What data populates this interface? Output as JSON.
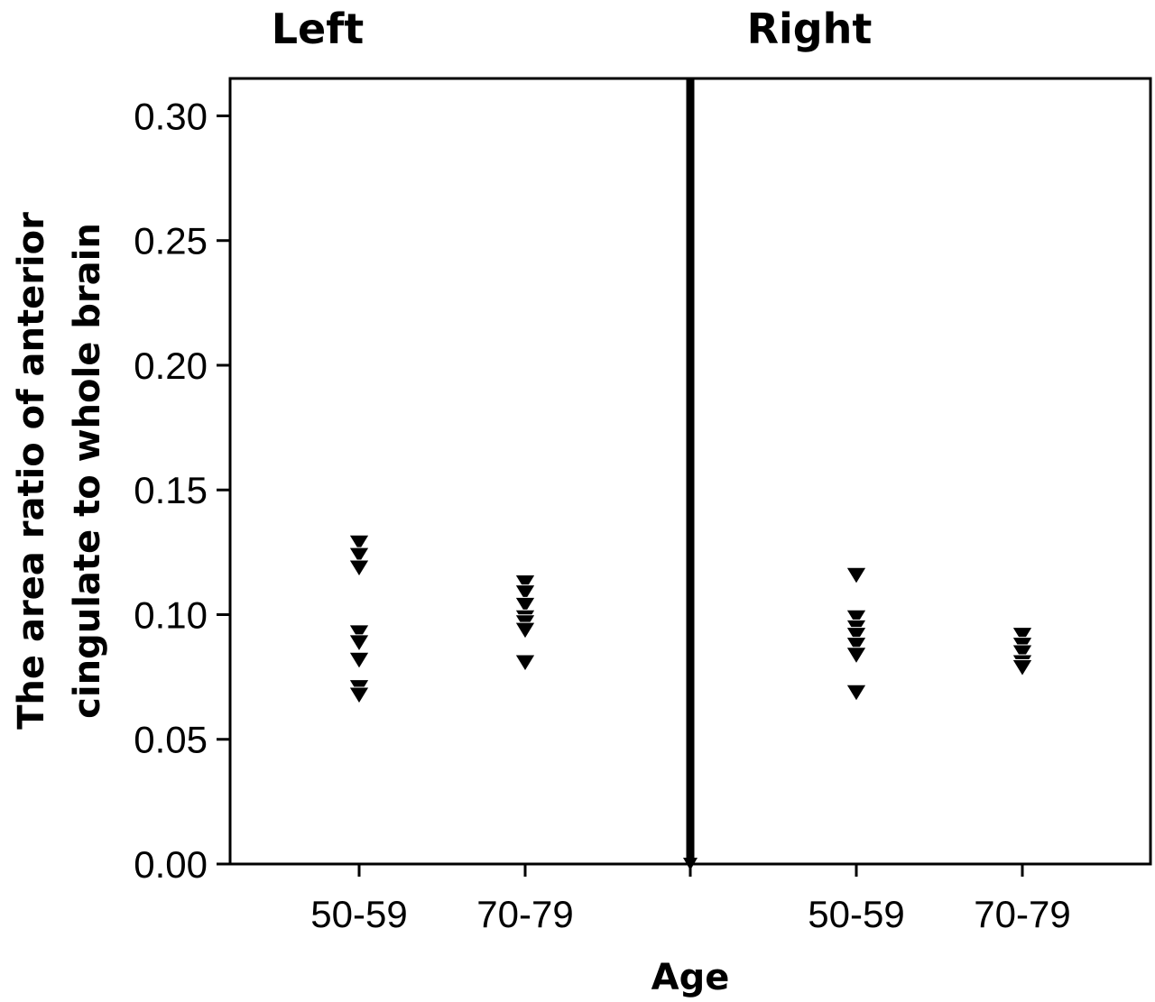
{
  "chart_data": {
    "type": "scatter",
    "xlabel": "Age",
    "ylabel": [
      "The area ratio of anterior",
      "cingulate to whole brain"
    ],
    "ylim": [
      0,
      0.315
    ],
    "yticks": [
      "0.00",
      "0.05",
      "0.10",
      "0.15",
      "0.20",
      "0.25",
      "0.30"
    ],
    "grid": false,
    "marker": "filled-down-triangle",
    "marker_color": "#000000",
    "panels": [
      {
        "title": "Left",
        "categories": [
          "50-59",
          "70-79"
        ],
        "groups": [
          {
            "category": "50-59",
            "values": [
              0.129,
              0.124,
              0.119,
              0.093,
              0.089,
              0.082,
              0.071,
              0.068
            ]
          },
          {
            "category": "70-79",
            "values": [
              0.113,
              0.109,
              0.104,
              0.099,
              0.097,
              0.094,
              0.081
            ]
          }
        ]
      },
      {
        "title": "Right",
        "categories": [
          "50-59",
          "70-79"
        ],
        "groups": [
          {
            "category": "50-59",
            "values": [
              0.116,
              0.099,
              0.095,
              0.092,
              0.088,
              0.084,
              0.069
            ]
          },
          {
            "category": "70-79",
            "values": [
              0.092,
              0.088,
              0.085,
              0.081,
              0.079
            ]
          }
        ]
      }
    ]
  }
}
